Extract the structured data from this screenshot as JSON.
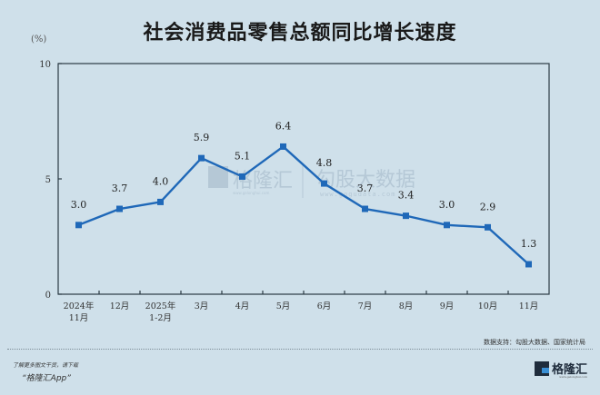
{
  "header": {
    "title": "社会消费品零售总额同比增长速度",
    "unit": "(%)"
  },
  "watermark": {
    "left": "格隆汇",
    "left_url": "www.gelonghui.com",
    "right": "勾股大数据",
    "right_url": "www.gogudata.com"
  },
  "footer": {
    "source": "数据支持：勾股大数据、国家统计局",
    "promo_line1": "了解更多图文干货，请下载",
    "promo_line2": "“格隆汇App”",
    "brand": "格隆汇",
    "brand_url": "www.gelonghui.com"
  },
  "colors": {
    "background": "#cfe0ea",
    "line": "#1f68b8",
    "axis": "#2b3a44"
  },
  "chart_data": {
    "type": "line",
    "title": "社会消费品零售总额同比增长速度",
    "xlabel": "",
    "ylabel": "(%)",
    "ylim": [
      0,
      10
    ],
    "yticks": [
      0,
      5,
      10
    ],
    "grid": false,
    "legend": null,
    "categories": [
      "2024年\n11月",
      "12月",
      "2025年\n1-2月",
      "3月",
      "4月",
      "5月",
      "6月",
      "7月",
      "8月",
      "9月",
      "10月",
      "11月"
    ],
    "series": [
      {
        "name": "社会消费品零售总额同比增长速度",
        "values": [
          3.0,
          3.7,
          4.0,
          5.9,
          5.1,
          6.4,
          4.8,
          3.7,
          3.4,
          3.0,
          2.9,
          1.3
        ]
      }
    ],
    "data_labels": [
      "3.0",
      "3.7",
      "4.0",
      "5.9",
      "5.1",
      "6.4",
      "4.8",
      "3.7",
      "3.4",
      "3.0",
      "2.9",
      "1.3"
    ]
  }
}
